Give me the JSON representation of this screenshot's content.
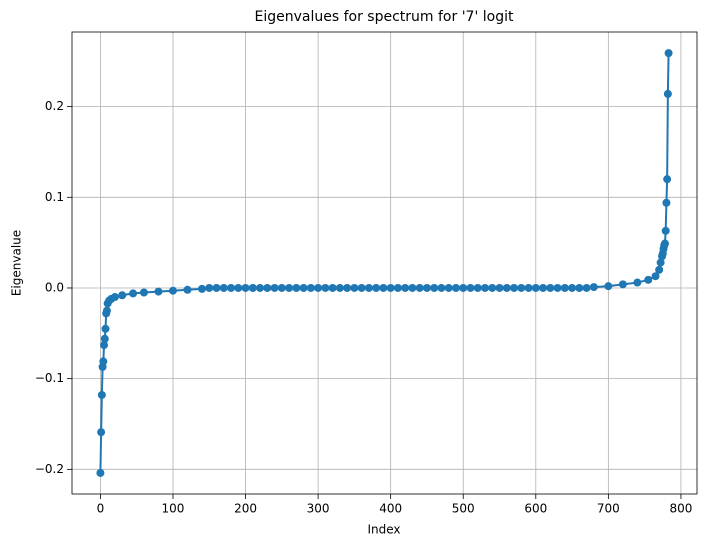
{
  "chart_data": {
    "type": "line",
    "title": "Eigenvalues for spectrum for '7' logit",
    "xlabel": "Index",
    "ylabel": "Eigenvalue",
    "x": [
      0,
      1,
      2,
      3,
      4,
      5,
      6,
      7,
      8,
      9,
      10,
      12,
      15,
      20,
      30,
      45,
      60,
      80,
      100,
      120,
      140,
      150,
      160,
      170,
      180,
      190,
      200,
      210,
      220,
      230,
      240,
      250,
      260,
      270,
      280,
      290,
      300,
      310,
      320,
      330,
      340,
      350,
      360,
      370,
      380,
      390,
      400,
      410,
      420,
      430,
      440,
      450,
      460,
      470,
      480,
      490,
      500,
      510,
      520,
      530,
      540,
      550,
      560,
      570,
      580,
      590,
      600,
      610,
      620,
      630,
      640,
      650,
      660,
      670,
      680,
      700,
      720,
      740,
      755,
      765,
      770,
      772,
      774,
      775,
      776,
      777,
      778,
      779,
      780,
      781,
      782,
      783
    ],
    "values": [
      -0.204,
      -0.159,
      -0.118,
      -0.087,
      -0.081,
      -0.063,
      -0.056,
      -0.045,
      -0.028,
      -0.025,
      -0.017,
      -0.014,
      -0.012,
      -0.01,
      -0.008,
      -0.006,
      -0.005,
      -0.004,
      -0.003,
      -0.002,
      -0.001,
      0,
      0,
      0,
      0,
      0,
      0,
      0,
      0,
      0,
      0,
      0,
      0,
      0,
      0,
      0,
      0,
      0,
      0,
      0,
      0,
      0,
      0,
      0,
      0,
      0,
      0,
      0,
      0,
      0,
      0,
      0,
      0,
      0,
      0,
      0,
      0,
      0,
      0,
      0,
      0,
      0,
      0,
      0,
      0,
      0,
      0,
      0,
      0,
      0,
      0,
      0,
      0,
      0,
      0.001,
      0.002,
      0.004,
      0.006,
      0.009,
      0.013,
      0.02,
      0.028,
      0.035,
      0.038,
      0.043,
      0.047,
      0.049,
      0.063,
      0.094,
      0.12,
      0.214,
      0.259
    ],
    "color": "#1f77b4",
    "xlim": [
      -39.15,
      822.15
    ],
    "ylim": [
      -0.2272,
      0.2823
    ],
    "xticks": [
      0,
      100,
      200,
      300,
      400,
      500,
      600,
      700,
      800
    ],
    "yticks": [
      {
        "value": -0.2,
        "label": "−0.2"
      },
      {
        "value": -0.1,
        "label": "−0.1"
      },
      {
        "value": 0,
        "label": "0.0"
      },
      0.1,
      0.2
    ],
    "grid": true
  }
}
